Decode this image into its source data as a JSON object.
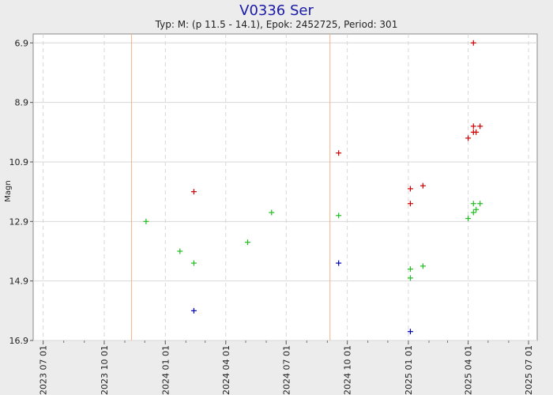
{
  "chart_data": {
    "type": "scatter",
    "title": "V0336 Ser",
    "subtitle": "Typ: M: (p 11.5 - 14.1), Epok: 2452725, Period: 301",
    "xlabel": "",
    "ylabel": "Magn",
    "ylim": [
      16.9,
      6.6
    ],
    "y_inverted": true,
    "yticks": [
      6.9,
      8.9,
      10.9,
      12.9,
      14.9,
      16.9
    ],
    "xlim": [
      "2023-06-16",
      "2025-07-14"
    ],
    "xticks": [
      "2023 07 01",
      "2023 10 01",
      "2024 01 01",
      "2024 04 01",
      "2024 07 01",
      "2024 10 01",
      "2025 01 01",
      "2025 04 01",
      "2025 07 01"
    ],
    "vertical_markers": [
      "2023-11-11",
      "2024-09-05"
    ],
    "grid": true,
    "legend": "none",
    "colors": {
      "red": "#cc0000",
      "green": "#22bb22",
      "blue": "#0000aa",
      "marker": "#f2b08a",
      "grid": "#d7d7d7",
      "plot_bg": "#ffffff"
    },
    "series": [
      {
        "color": "red",
        "points": [
          {
            "x": "2024-02-13",
            "y": 11.9
          },
          {
            "x": "2024-09-18",
            "y": 10.6
          },
          {
            "x": "2025-01-04",
            "y": 11.8
          },
          {
            "x": "2025-01-04",
            "y": 12.3
          },
          {
            "x": "2025-01-23",
            "y": 11.7
          },
          {
            "x": "2025-04-01",
            "y": 10.1
          },
          {
            "x": "2025-04-09",
            "y": 6.9
          },
          {
            "x": "2025-04-09",
            "y": 9.7
          },
          {
            "x": "2025-04-09",
            "y": 9.9
          },
          {
            "x": "2025-04-13",
            "y": 9.9
          },
          {
            "x": "2025-04-19",
            "y": 9.7
          }
        ]
      },
      {
        "color": "green",
        "points": [
          {
            "x": "2023-12-03",
            "y": 12.9
          },
          {
            "x": "2024-01-23",
            "y": 13.9
          },
          {
            "x": "2024-02-13",
            "y": 14.3
          },
          {
            "x": "2024-05-04",
            "y": 13.6
          },
          {
            "x": "2024-06-09",
            "y": 12.6
          },
          {
            "x": "2024-09-18",
            "y": 12.7
          },
          {
            "x": "2025-01-04",
            "y": 14.5
          },
          {
            "x": "2025-01-04",
            "y": 14.8
          },
          {
            "x": "2025-01-23",
            "y": 14.4
          },
          {
            "x": "2025-04-01",
            "y": 12.8
          },
          {
            "x": "2025-04-09",
            "y": 12.3
          },
          {
            "x": "2025-04-09",
            "y": 12.6
          },
          {
            "x": "2025-04-13",
            "y": 12.5
          },
          {
            "x": "2025-04-19",
            "y": 12.3
          }
        ]
      },
      {
        "color": "blue",
        "points": [
          {
            "x": "2024-02-13",
            "y": 15.9
          },
          {
            "x": "2024-09-18",
            "y": 14.3
          },
          {
            "x": "2025-01-04",
            "y": 16.6
          }
        ]
      }
    ]
  }
}
